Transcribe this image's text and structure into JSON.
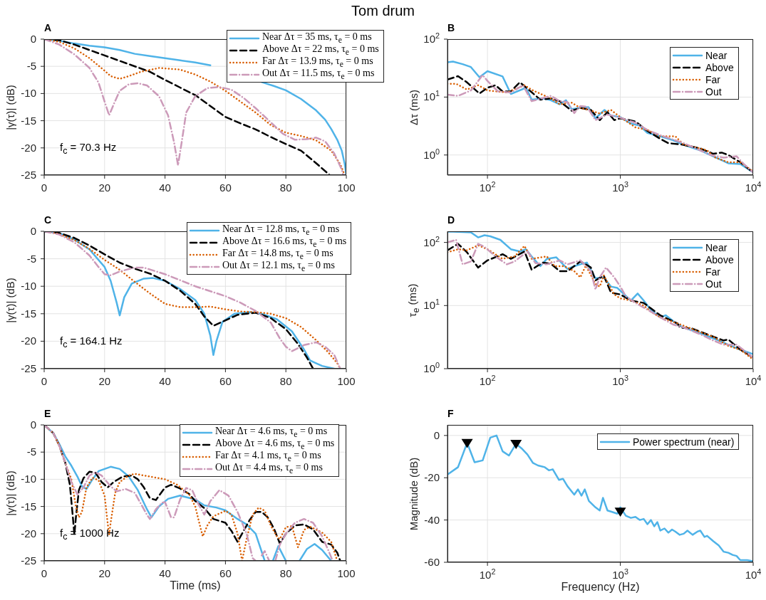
{
  "chart_data": [
    {
      "type": "line",
      "title": "Tom drum",
      "subtitle": "A",
      "ylabel": "|γ(τ)| (dB)",
      "xlim": [
        0,
        100
      ],
      "xticks": [
        0,
        20,
        40,
        60,
        80,
        100
      ],
      "ylim": [
        -25,
        0
      ],
      "yticks": [
        -25,
        -20,
        -15,
        -10,
        -5,
        0
      ],
      "grid": true,
      "legend": "top right",
      "annotations": [
        "f$_{c}$ = 70.3 Hz"
      ],
      "series": [
        {
          "name": "Near Δτ = 35 ms, τ$_{e}$ = 0 ms",
          "color": "#4fb3e8",
          "line_style": "solid",
          "x": [
            0,
            5,
            10,
            15,
            20,
            25,
            30,
            35,
            40,
            45,
            50,
            55,
            60,
            72,
            76,
            80,
            85,
            90,
            93,
            95,
            97,
            98.5,
            99.5,
            100
          ],
          "values": [
            0,
            -0.3,
            -0.8,
            -1.2,
            -1.5,
            -2,
            -2.7,
            -3.1,
            -3.5,
            -3.9,
            -4.3,
            -4.8,
            null,
            -7.9,
            -8.6,
            -9.4,
            -11,
            -13.1,
            -14.8,
            -16.5,
            -18.5,
            -20.5,
            -23,
            -25
          ]
        },
        {
          "name": "Above Δτ = 22 ms, τ$_{e}$ = 0 ms",
          "color": "#000000",
          "line_style": "dashed",
          "x": [
            0,
            5,
            10,
            15,
            20,
            25,
            30,
            35,
            40,
            45,
            50,
            55,
            60,
            65,
            70,
            75,
            80,
            85,
            90,
            94.5
          ],
          "values": [
            0,
            -0.2,
            -1,
            -2,
            -3,
            -4,
            -5,
            -6,
            -7.5,
            -8.9,
            -10.3,
            -12.3,
            -14.3,
            -15.5,
            -16.6,
            -18,
            -19.3,
            -20.5,
            -22.8,
            -25
          ]
        },
        {
          "name": "Far Δτ = 13.9 ms, τ$_{e}$ = 0 ms",
          "color": "#d95f02",
          "line_style": "dotted",
          "x": [
            0,
            5,
            10,
            15,
            20,
            22,
            25,
            28,
            32,
            38,
            45,
            50,
            55,
            60,
            65,
            70,
            75,
            80,
            85,
            90,
            95,
            98,
            99.5
          ],
          "values": [
            0,
            -0.5,
            -1.7,
            -3.5,
            -5.8,
            -6.8,
            -7.3,
            -6.8,
            -6,
            -5.3,
            -5.6,
            -6.5,
            -7.8,
            -9.5,
            -11.5,
            -13.5,
            -15.8,
            -17.2,
            -17.8,
            -18.6,
            -20.5,
            -23,
            -25
          ]
        },
        {
          "name": "Out Δτ = 11.5 ms, τ$_{e}$ = 0 ms",
          "color": "#cc9ab9",
          "line_style": "dashdot",
          "x": [
            0,
            5,
            10,
            15,
            18,
            20,
            21.5,
            23,
            25,
            28,
            31,
            34,
            38,
            41,
            43,
            44.3,
            45.5,
            47,
            50,
            54,
            58,
            62,
            66,
            70,
            75,
            79,
            83,
            87,
            90,
            93,
            96,
            98.5,
            99
          ],
          "values": [
            0,
            -1,
            -2.8,
            -5.3,
            -8,
            -11.5,
            -14,
            -12,
            -9.5,
            -8.3,
            -8.1,
            -8.5,
            -10.5,
            -14,
            -19,
            -23.2,
            -19,
            -13.5,
            -10.5,
            -9,
            -8.8,
            -9.3,
            -10.8,
            -12.7,
            -15.3,
            -17.4,
            -18.5,
            -18.4,
            -18.1,
            -18.8,
            -21,
            -24,
            -25
          ]
        }
      ]
    },
    {
      "type": "line",
      "subtitle": "B",
      "ylabel": "Δτ (ms)",
      "log": "xy",
      "xlim": [
        50,
        10000
      ],
      "xticks": [
        {
          "value": 100,
          "label": "10$^{2}$"
        },
        {
          "value": 1000,
          "label": "10$^{3}$"
        },
        {
          "value": 10000,
          "label": "10$^{4}$"
        }
      ],
      "ylim": [
        0.45,
        100
      ],
      "yticks": [
        {
          "value": 1,
          "label": "10$^{0}$"
        },
        {
          "value": 10,
          "label": "10$^{1}$"
        },
        {
          "value": 100,
          "label": "10$^{2}$"
        }
      ],
      "grid": true,
      "legend": "top right",
      "series": [
        {
          "name": "Near",
          "color": "#4fb3e8",
          "line_style": "solid",
          "x": [
            50,
            55,
            65,
            75,
            87,
            100,
            130,
            150,
            195,
            215,
            260,
            300,
            350,
            390,
            430,
            500,
            575,
            650,
            760,
            850,
            1000,
            1200,
            1400,
            1600,
            2000,
            2500,
            3000,
            4000,
            5000,
            6500,
            8000,
            10000
          ],
          "values": [
            40,
            41,
            37,
            33,
            22,
            28,
            22.7,
            11.3,
            14.5,
            9,
            9.5,
            8.8,
            7.5,
            8.8,
            6.2,
            6.5,
            6.7,
            4.3,
            6,
            4.8,
            4.5,
            3.5,
            3.2,
            2.4,
            2.1,
            1.8,
            1.5,
            1.2,
            0.95,
            0.72,
            0.7,
            0.5
          ]
        },
        {
          "name": "Above",
          "color": "#000000",
          "line_style": "dashed",
          "x": [
            50,
            60,
            70,
            87,
            100,
            115,
            130,
            150,
            175,
            200,
            250,
            300,
            350,
            430,
            500,
            600,
            700,
            800,
            900,
            1000,
            1300,
            1600,
            2000,
            2300,
            3000,
            4000,
            5000,
            5800,
            6500,
            8000,
            10000
          ],
          "values": [
            20,
            23,
            18,
            11.5,
            14.5,
            16,
            12.5,
            12.5,
            18,
            14,
            9,
            9.5,
            8.5,
            5.8,
            6.5,
            6,
            4,
            5.5,
            4,
            4.3,
            3.8,
            2.6,
            1.9,
            1.6,
            1.5,
            1.3,
            1.05,
            1.1,
            1,
            0.75,
            0.5
          ]
        },
        {
          "name": "Far",
          "color": "#d95f02",
          "line_style": "dotted",
          "x": [
            50,
            58,
            70,
            85,
            95,
            100,
            140,
            190,
            220,
            300,
            350,
            430,
            500,
            580,
            700,
            850,
            1000,
            1300,
            1600,
            2000,
            2600,
            3000,
            4000,
            4500,
            5200,
            6500,
            8000,
            10000
          ],
          "values": [
            17,
            17,
            13.5,
            16,
            14,
            13,
            12,
            16,
            13,
            9.5,
            7.5,
            8,
            6.5,
            6,
            5.2,
            6,
            4.5,
            3,
            2.7,
            2.1,
            2.1,
            1.5,
            1.3,
            1.2,
            0.9,
            0.75,
            0.75,
            0.52
          ]
        },
        {
          "name": "Out",
          "color": "#cc9ab9",
          "line_style": "dashdot",
          "x": [
            50,
            60,
            75,
            92,
            100,
            120,
            150,
            185,
            215,
            300,
            350,
            400,
            450,
            500,
            560,
            650,
            800,
            1000,
            1300,
            1600,
            2000,
            3000,
            4000,
            4800,
            6000,
            7500,
            8500,
            10000
          ],
          "values": [
            11,
            10.5,
            13,
            24,
            19,
            12.5,
            12,
            16,
            8.5,
            10.5,
            8.5,
            8.2,
            5.3,
            7,
            6.8,
            4,
            5,
            4.4,
            3.6,
            2.7,
            2.2,
            1.6,
            1.2,
            1,
            0.9,
            0.95,
            0.7,
            0.5
          ]
        }
      ]
    },
    {
      "type": "line",
      "subtitle": "C",
      "ylabel": "|γ(τ)| (dB)",
      "xlim": [
        0,
        100
      ],
      "xticks": [
        0,
        20,
        40,
        60,
        80,
        100
      ],
      "ylim": [
        -25,
        0
      ],
      "yticks": [
        -25,
        -20,
        -15,
        -10,
        -5,
        0
      ],
      "grid": true,
      "legend": "top right",
      "annotations": [
        "f$_{c}$ = 164.1 Hz"
      ],
      "series": [
        {
          "name": "Near Δτ = 12.8 ms, τ$_{e}$ = 0 ms",
          "color": "#4fb3e8",
          "line_style": "solid",
          "x": [
            0,
            5,
            10,
            15,
            20,
            22,
            24,
            25,
            26.5,
            29,
            33,
            36,
            40,
            45,
            50,
            53,
            55,
            56,
            57,
            59,
            63,
            68,
            72,
            77,
            82,
            86,
            88,
            90,
            92,
            96
          ],
          "values": [
            0,
            -0.3,
            -1.5,
            -3.3,
            -6.5,
            -9,
            -13,
            -15.3,
            -12,
            -9.5,
            -8.6,
            -8.5,
            -9,
            -10.5,
            -12.5,
            -15,
            -19,
            -22.5,
            -20,
            -16.5,
            -15,
            -14.7,
            -15,
            -16,
            -18.2,
            -21.5,
            -23.5,
            -24,
            -24.5,
            -25
          ]
        },
        {
          "name": "Above Δτ = 16.6 ms, τ$_{e}$ = 0 ms",
          "color": "#000000",
          "line_style": "dashed",
          "x": [
            0,
            5,
            10,
            15,
            20,
            25,
            30,
            35,
            40,
            45,
            50,
            53,
            56,
            60,
            64,
            70,
            75,
            80,
            84,
            87,
            89
          ],
          "values": [
            0,
            -0.3,
            -1.2,
            -2.6,
            -4.2,
            -5.7,
            -6.8,
            -7.7,
            -9,
            -10.8,
            -13.2,
            -15.5,
            -17.2,
            -16.2,
            -15.2,
            -14.8,
            -15.8,
            -17.8,
            -20.5,
            -23,
            -25
          ]
        },
        {
          "name": "Far Δτ = 14.8 ms, τ$_{e}$ = 0 ms",
          "color": "#d95f02",
          "line_style": "dotted",
          "x": [
            0,
            5,
            10,
            15,
            20,
            25,
            30,
            35,
            40,
            45,
            50,
            55,
            60,
            65,
            70,
            75,
            80,
            85,
            90,
            94,
            97,
            98
          ],
          "values": [
            0,
            -0.5,
            -1.6,
            -3.2,
            -5.2,
            -7,
            -9.2,
            -11.3,
            -13.2,
            -13.8,
            -13.8,
            -13.7,
            -14.2,
            -14.6,
            -14.7,
            -15,
            -15.8,
            -17.4,
            -19.8,
            -22,
            -24,
            -25
          ]
        },
        {
          "name": "Out Δτ = 12.1 ms, τ$_{e}$ = 0 ms",
          "color": "#cc9ab9",
          "line_style": "dashdot",
          "x": [
            0,
            5,
            10,
            15,
            18,
            20,
            22,
            25,
            30,
            33,
            40,
            50,
            60,
            65,
            70,
            75,
            78,
            80,
            82,
            86,
            90,
            93,
            96,
            98
          ],
          "values": [
            0,
            -0.6,
            -2,
            -4.4,
            -6.5,
            -7.8,
            -8,
            -7.3,
            -6.6,
            -6.6,
            -7.8,
            -10,
            -11.8,
            -13,
            -14.5,
            -16.6,
            -19.5,
            -21,
            -21.8,
            -20.7,
            -20.2,
            -21,
            -22.5,
            -25
          ]
        }
      ]
    },
    {
      "type": "line",
      "subtitle": "D",
      "ylabel": "τ$_{e}$ (ms)",
      "log": "xy",
      "xlim": [
        50,
        10000
      ],
      "xticks": [
        {
          "value": 100,
          "label": "10$^{2}$"
        },
        {
          "value": 1000,
          "label": "10$^{3}$"
        },
        {
          "value": 10000,
          "label": "10$^{4}$"
        }
      ],
      "ylim": [
        1,
        150
      ],
      "yticks": [
        {
          "value": 1,
          "label": "10$^{0}$"
        },
        {
          "value": 10,
          "label": "10$^{1}$"
        },
        {
          "value": 100,
          "label": "10$^{2}$"
        }
      ],
      "grid": true,
      "legend": "top right",
      "series": [
        {
          "name": "Near",
          "color": "#4fb3e8",
          "line_style": "solid",
          "x": [
            50,
            55,
            65,
            75,
            85,
            95,
            105,
            125,
            150,
            175,
            195,
            215,
            250,
            280,
            330,
            400,
            450,
            500,
            560,
            650,
            750,
            850,
            950,
            1200,
            1350,
            1500,
            1700,
            2000,
            2200,
            2700,
            3000,
            3500,
            4200,
            5500,
            6500,
            8000,
            10000
          ],
          "values": [
            148,
            148,
            146,
            144,
            120,
            130,
            125,
            110,
            78,
            72,
            78,
            60,
            42,
            55,
            58,
            38,
            42,
            45,
            48,
            27,
            28,
            20,
            19,
            12,
            15.5,
            12,
            8.5,
            6.5,
            7,
            5,
            4.5,
            4,
            3.5,
            2.8,
            2.4,
            2,
            1.7
          ]
        },
        {
          "name": "Above",
          "color": "#000000",
          "line_style": "dashed",
          "x": [
            50,
            60,
            70,
            85,
            100,
            130,
            150,
            190,
            215,
            260,
            300,
            350,
            400,
            500,
            550,
            600,
            650,
            750,
            850,
            1000,
            1200,
            1500,
            1700,
            2000,
            2700,
            2800,
            3500,
            4500,
            6000,
            6500,
            8000,
            10000
          ],
          "values": [
            75,
            95,
            70,
            40,
            52,
            65,
            55,
            72,
            37,
            48,
            46,
            35,
            35,
            50,
            45,
            40,
            25,
            30,
            16,
            15,
            12,
            11,
            9,
            7,
            5.2,
            4.5,
            4.3,
            3.5,
            2.8,
            2.9,
            2,
            1.5
          ]
        },
        {
          "name": "Far",
          "color": "#d95f02",
          "line_style": "dotted",
          "x": [
            50,
            60,
            70,
            85,
            100,
            130,
            160,
            190,
            215,
            280,
            320,
            380,
            450,
            500,
            550,
            650,
            700,
            750,
            900,
            1000,
            1200,
            1500,
            1700,
            2000,
            2500,
            3000,
            4000,
            5000,
            6500,
            8000,
            10000
          ],
          "values": [
            70,
            78,
            75,
            90,
            78,
            55,
            60,
            88,
            55,
            60,
            42,
            42,
            35,
            28,
            43,
            22,
            20,
            30,
            15,
            13,
            12,
            10,
            8,
            6.5,
            5.5,
            4.8,
            3.8,
            3.2,
            2.3,
            2,
            1.4
          ]
        },
        {
          "name": "Out",
          "color": "#cc9ab9",
          "line_style": "dashdot",
          "x": [
            50,
            58,
            65,
            75,
            85,
            95,
            115,
            140,
            160,
            200,
            230,
            280,
            350,
            400,
            500,
            600,
            650,
            700,
            780,
            900,
            1000,
            1100,
            1300,
            1700,
            2000,
            2500,
            3000,
            4000,
            5000,
            6000,
            7500,
            10000
          ],
          "values": [
            100,
            110,
            45,
            50,
            95,
            85,
            60,
            45,
            50,
            72,
            47,
            45,
            52,
            45,
            52,
            35,
            18,
            28,
            40,
            28,
            20,
            14,
            11,
            8,
            6.5,
            5,
            4.5,
            3.5,
            2.8,
            2.4,
            2.4,
            1.5
          ]
        }
      ]
    },
    {
      "type": "line",
      "subtitle": "E",
      "xlabel": "Time (ms)",
      "ylabel": "|γ(τ)| (dB)",
      "xlim": [
        0,
        100
      ],
      "xticks": [
        0,
        20,
        40,
        60,
        80,
        100
      ],
      "ylim": [
        -25,
        0
      ],
      "yticks": [
        -25,
        -20,
        -15,
        -10,
        -5,
        0
      ],
      "grid": true,
      "legend": "top right",
      "annotations": [
        "f$_{c}$ = 1000 Hz"
      ],
      "series": [
        {
          "name": "Near Δτ = 4.6 ms, τ$_{e}$ = 0 ms",
          "color": "#4fb3e8",
          "line_style": "solid",
          "x": [
            0,
            3,
            5,
            7,
            9,
            11,
            12.5,
            14,
            16,
            18,
            22,
            25,
            28,
            31,
            34,
            35.5,
            38,
            41,
            45,
            50,
            53,
            57,
            60,
            64,
            67,
            70,
            73,
            74,
            75.7,
            77.5,
            80,
            82,
            84.5,
            87,
            89.5,
            92,
            95
          ],
          "values": [
            0,
            -1.5,
            -3.5,
            -5.8,
            -7.5,
            -9.5,
            -11.3,
            -11.8,
            -10,
            -8.5,
            -7.7,
            -8.1,
            -9.5,
            -12,
            -15.5,
            -17,
            -15,
            -13.6,
            -13,
            -13.7,
            -14.8,
            -15.2,
            -15.7,
            -17.3,
            -18.3,
            -20,
            -25,
            null,
            -25,
            -22.3,
            -25,
            null,
            -25,
            -22.8,
            -21.9,
            -23,
            -25
          ]
        },
        {
          "name": "Above Δτ = 4.6 ms, τ$_{e}$ = 0 ms",
          "color": "#000000",
          "line_style": "dashed",
          "x": [
            0,
            3,
            5,
            7,
            8.5,
            9.5,
            10,
            10.5,
            11.5,
            13,
            15,
            17,
            19,
            21,
            23,
            26,
            29,
            31,
            33,
            35,
            37,
            40,
            42,
            45,
            48,
            50,
            53,
            56,
            60,
            62,
            64,
            66,
            68,
            70,
            72,
            74,
            76,
            78,
            80,
            83,
            86,
            89,
            92,
            95,
            97,
            98
          ],
          "values": [
            0,
            -1.5,
            -3.8,
            -7,
            -11,
            -17,
            -20.2,
            -17,
            -12,
            -9.8,
            -8.6,
            -8.8,
            -10.5,
            -11.5,
            -10.5,
            -9.5,
            -9.3,
            -10,
            -11.5,
            -13.5,
            -13.8,
            -11.5,
            -11,
            -11.7,
            -12.7,
            -14,
            -15.3,
            -17.3,
            -18,
            -19.5,
            -21.5,
            -19.5,
            -17.5,
            -16,
            -16,
            -17,
            -19,
            -21.8,
            -20,
            -18.5,
            -18.3,
            -19.2,
            -21.5,
            -22,
            -23.5,
            -25
          ]
        },
        {
          "name": "Far Δτ = 4.1 ms, τ$_{e}$ = 0 ms",
          "color": "#d95f02",
          "line_style": "dotted",
          "x": [
            0,
            3,
            5,
            7,
            9,
            10.5,
            11.5,
            12.5,
            14,
            16,
            18,
            20,
            21,
            21.5,
            22,
            23.5,
            25,
            28,
            30,
            40,
            44,
            48,
            50,
            52,
            52.5,
            54,
            56,
            60,
            62,
            64,
            65.5,
            67,
            69,
            71,
            73,
            75,
            77,
            78,
            80,
            82,
            84,
            86,
            88,
            92,
            95,
            97
          ],
          "values": [
            0,
            -1.5,
            -3.8,
            -7,
            -10,
            -15,
            -17,
            -16,
            -11.5,
            -9.7,
            -10.2,
            -13,
            -18,
            -20.2,
            -18,
            -12.5,
            -10.5,
            -9.3,
            -9,
            -10,
            -11,
            -12.8,
            -15,
            -19.5,
            -20.5,
            -18.5,
            -16.8,
            -15.8,
            -16.5,
            -20,
            -25,
            -21,
            -16.5,
            -15.2,
            -15.8,
            -18.5,
            -20.5,
            -21,
            -18.8,
            -18.6,
            -22.5,
            -19.3,
            -18.7,
            -19.8,
            -21.5,
            -25
          ]
        },
        {
          "name": "Out Δτ = 4.4 ms, τ$_{e}$ = 0 ms",
          "color": "#cc9ab9",
          "line_style": "dashdot",
          "x": [
            0,
            3,
            5,
            7,
            9,
            11,
            13,
            15,
            17,
            19,
            22,
            24,
            27,
            30,
            32,
            34,
            35,
            37,
            39,
            40,
            42,
            43,
            45,
            47,
            49,
            51,
            53,
            55,
            58,
            61,
            64,
            67,
            69,
            70,
            71,
            72,
            73,
            74.5,
            75,
            76.5,
            78,
            80,
            83,
            86,
            89,
            92,
            94,
            95.5
          ],
          "values": [
            0,
            -1.5,
            -3.8,
            -7,
            -10.5,
            -12.8,
            -11.5,
            -9.3,
            -8.7,
            -9.3,
            -11.3,
            -12.2,
            -11.8,
            -12.5,
            -14.5,
            -16.5,
            -17.3,
            -15.5,
            -14.3,
            -14.2,
            -17,
            -17,
            -13.7,
            -11.6,
            -12,
            -14.5,
            -16.5,
            -14,
            -12,
            -13,
            -16,
            -20,
            -24.5,
            -25,
            null,
            -24,
            -23.2,
            -25,
            null,
            -25,
            -22,
            -20,
            -18,
            -17.3,
            -18,
            -20.5,
            -23,
            -25
          ]
        }
      ]
    },
    {
      "type": "line",
      "subtitle": "F",
      "xlabel": "Frequency (Hz)",
      "ylabel": "Magnitude (dB)",
      "log": "x",
      "xlim": [
        50,
        10000
      ],
      "xticks": [
        {
          "value": 100,
          "label": "10$^{2}$"
        },
        {
          "value": 1000,
          "label": "10$^{3}$"
        },
        {
          "value": 10000,
          "label": "10$^{4}$"
        }
      ],
      "ylim": [
        -60,
        5
      ],
      "yticks": [
        -60,
        -40,
        -20,
        0
      ],
      "grid": true,
      "legend": "top right",
      "series": [
        {
          "name": "Power spectrum (near)",
          "color": "#4fb3e8",
          "line_style": "solid",
          "x": [
            50,
            60,
            70.3,
            80,
            92,
            105,
            117,
            130,
            145,
            164,
            180,
            200,
            220,
            240,
            270,
            290,
            310,
            345,
            370,
            400,
            450,
            480,
            510,
            540,
            580,
            650,
            700,
            740,
            800,
            850,
            950,
            1000,
            1100,
            1200,
            1300,
            1400,
            1500,
            1600,
            1700,
            1800,
            1900,
            2000,
            2150,
            2300,
            2450,
            2600,
            2800,
            3000,
            3200,
            3500,
            3800,
            4000,
            4300,
            4500,
            5000,
            5500,
            6000,
            6500,
            7000,
            7500,
            8000,
            9000,
            10000
          ],
          "values": [
            -18.5,
            -15,
            -3.5,
            -12.7,
            -11.8,
            -1,
            0,
            -7.5,
            -9.5,
            -4,
            -6,
            -9,
            -13,
            -14.2,
            -15,
            -16.5,
            -16,
            -21,
            -20.5,
            -24,
            -28,
            -25.5,
            -28.5,
            -25.5,
            -31,
            -34,
            -35.5,
            -29.5,
            -35.5,
            -36,
            -37,
            -34,
            -38,
            -39,
            -38.5,
            -40,
            -39.5,
            -42,
            -40,
            -43,
            -41,
            -45,
            -44,
            -46,
            -44.5,
            -45.5,
            -47,
            -46.5,
            -45,
            -47,
            -45.5,
            -45,
            -48,
            -47.5,
            -50,
            -52,
            -55,
            -55.5,
            -56.5,
            -57,
            -59,
            -59,
            -59.5
          ]
        },
        {
          "type": "scatter",
          "marker": "triangle",
          "color": "#000000",
          "x": [
            70.3,
            164.1,
            1000
          ],
          "values": [
            -3.5,
            -4,
            -36
          ]
        }
      ]
    }
  ]
}
